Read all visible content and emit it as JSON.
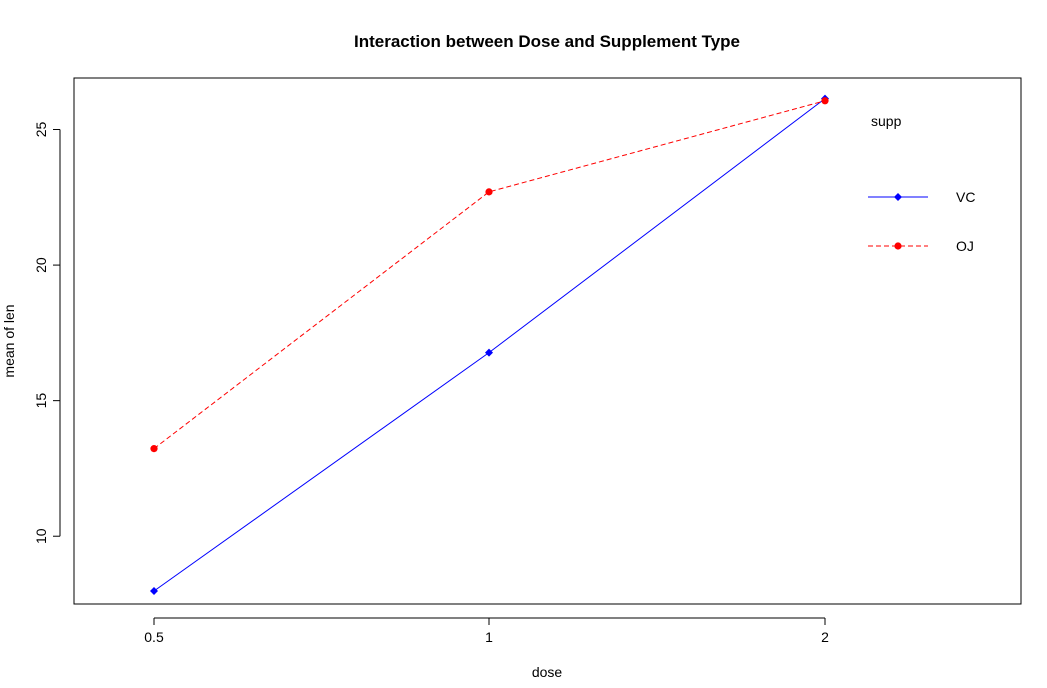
{
  "chart_data": {
    "type": "line",
    "title": "Interaction between Dose and Supplement Type",
    "xlabel": "dose",
    "ylabel": "mean of len",
    "categories": [
      "0.5",
      "1",
      "2"
    ],
    "ylim": [
      7.5,
      26.9
    ],
    "yticks": [
      10,
      15,
      20,
      25
    ],
    "grid": false,
    "legend": {
      "title": "supp",
      "placement": "top-right",
      "entries": [
        "VC",
        "OJ"
      ]
    },
    "series": [
      {
        "name": "VC",
        "values": [
          7.98,
          16.77,
          26.14
        ],
        "color": "#0000ff",
        "line_style": "solid",
        "marker": "diamond"
      },
      {
        "name": "OJ",
        "values": [
          13.23,
          22.7,
          26.06
        ],
        "color": "#ff0000",
        "line_style": "dashed",
        "marker": "circle"
      }
    ]
  }
}
